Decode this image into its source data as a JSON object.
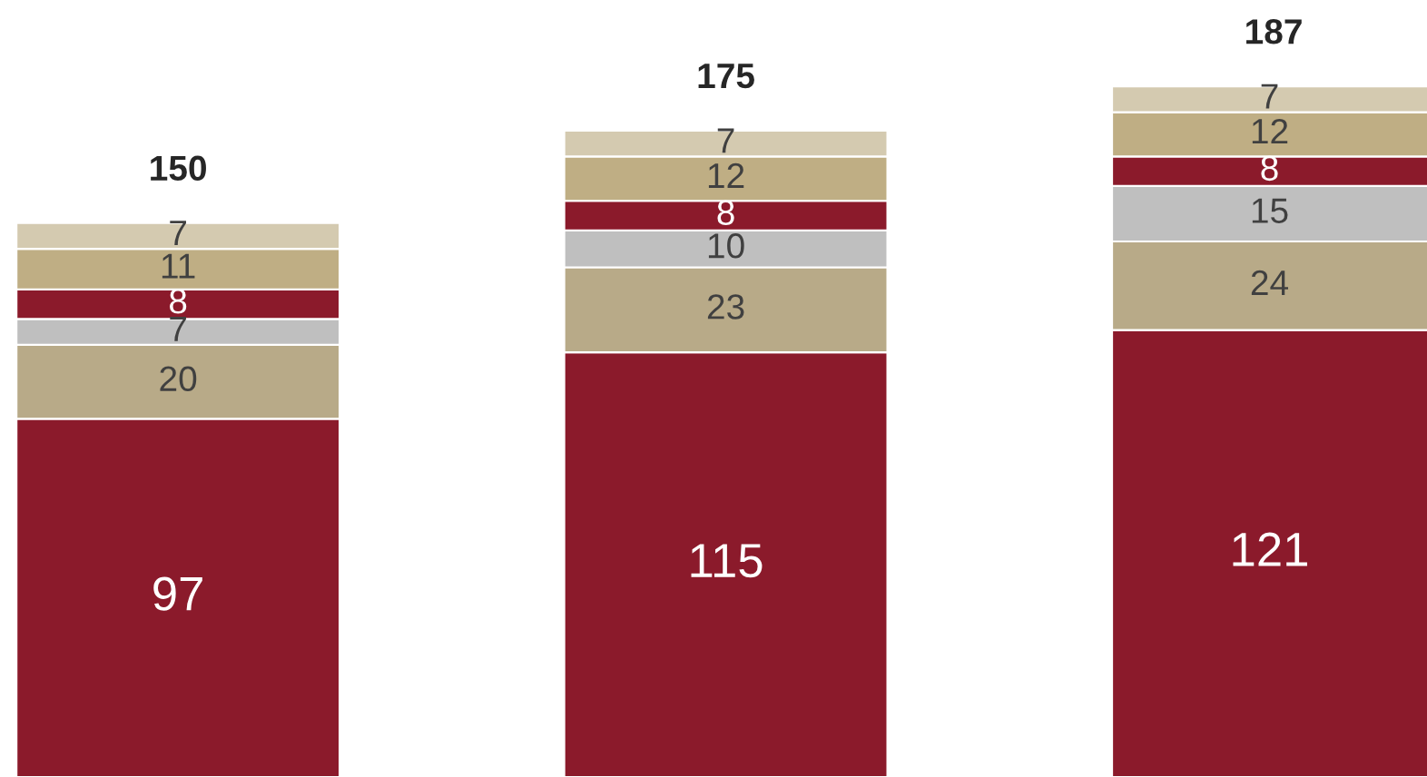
{
  "chart_data": {
    "type": "bar",
    "stacked": true,
    "categories": [
      null,
      null,
      null
    ],
    "series": [
      {
        "color": "#8b1a2b",
        "values": [
          97,
          115,
          121
        ]
      },
      {
        "color": "#b8aa88",
        "values": [
          20,
          23,
          24
        ]
      },
      {
        "color": "#bfbfbf",
        "values": [
          7,
          10,
          15
        ]
      },
      {
        "color": "#8b1a2b",
        "values": [
          8,
          8,
          8
        ]
      },
      {
        "color": "#bfae84",
        "values": [
          11,
          12,
          12
        ]
      },
      {
        "color": "#d4cab0",
        "values": [
          7,
          7,
          7
        ]
      }
    ],
    "data_labels": true,
    "totals": [
      "150",
      "175",
      "187"
    ]
  }
}
